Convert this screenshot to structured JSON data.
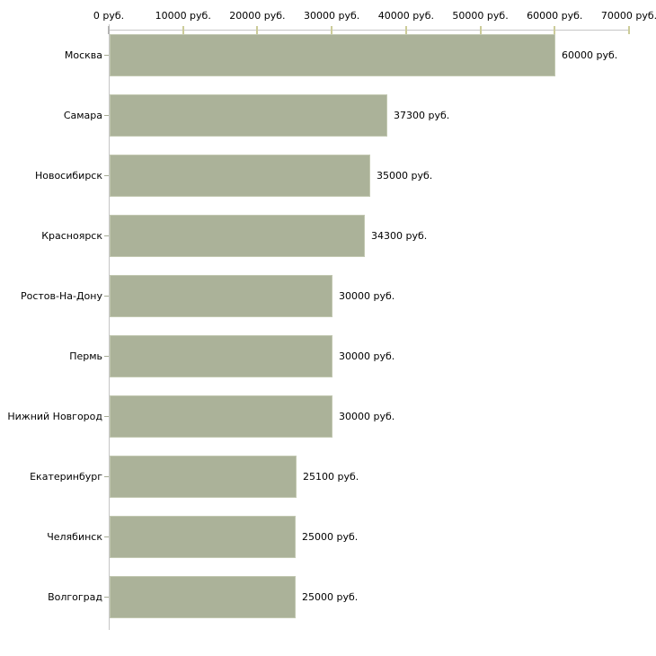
{
  "chart_data": {
    "type": "bar",
    "orientation": "horizontal",
    "title": "",
    "xlabel": "",
    "ylabel": "",
    "grid": false,
    "legend": false,
    "categories": [
      "Москва",
      "Самара",
      "Новосибирск",
      "Красноярск",
      "Ростов-На-Дону",
      "Пермь",
      "Нижний Новгород",
      "Екатеринбург",
      "Челябинск",
      "Волгоград"
    ],
    "values": [
      60000,
      37300,
      35000,
      34300,
      30000,
      30000,
      30000,
      25100,
      25000,
      25000
    ],
    "value_labels": [
      "60000 руб.",
      "37300 руб.",
      "35000 руб.",
      "34300 руб.",
      "30000 руб.",
      "30000 руб.",
      "30000 руб.",
      "25100 руб.",
      "25000 руб.",
      "25000 руб."
    ],
    "x_axis": {
      "position": "top",
      "min": 0,
      "max": 70000,
      "tick_values": [
        0,
        10000,
        20000,
        30000,
        40000,
        50000,
        60000,
        70000
      ],
      "tick_labels": [
        "0 руб.",
        "10000 руб.",
        "20000 руб.",
        "30000 руб.",
        "40000 руб.",
        "50000 руб.",
        "60000 руб.",
        "70000 руб."
      ]
    },
    "colors": {
      "background": "#ffffff",
      "bar_fill": "#abb299",
      "bar_border": "#c2c8b1",
      "axis_line": "#c6c6c6",
      "zero_tick": "#b3b3b3",
      "tick_mark": "#cccc99",
      "category_tick": "#a6ab94",
      "text": "#000000"
    }
  }
}
